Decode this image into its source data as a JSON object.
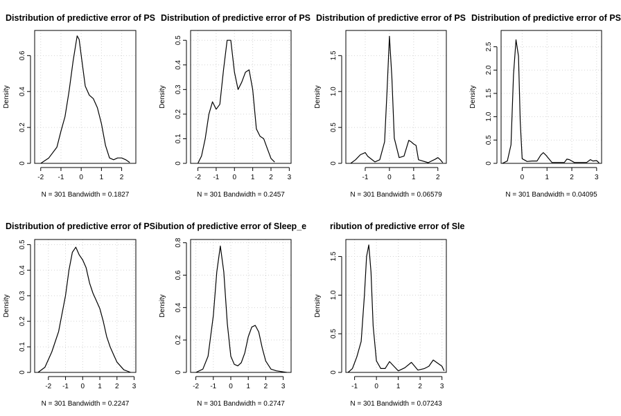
{
  "chart_data": [
    {
      "type": "line",
      "title": "Distribution of predictive error of PS",
      "xlabel": "N = 301   Bandwidth = 0.1827",
      "ylabel": "Density",
      "xlim": [
        -2.3,
        2.7
      ],
      "ylim": [
        0,
        0.74
      ],
      "xticks": [
        -2,
        -1,
        0,
        1,
        2
      ],
      "yticks": [
        0,
        0.2,
        0.4,
        0.6
      ],
      "grid": true,
      "x": [
        -2.0,
        -1.6,
        -1.2,
        -1.0,
        -0.8,
        -0.6,
        -0.4,
        -0.2,
        -0.1,
        0.0,
        0.2,
        0.4,
        0.6,
        0.8,
        1.0,
        1.2,
        1.4,
        1.6,
        1.8,
        2.0,
        2.2,
        2.4
      ],
      "y": [
        0.0,
        0.03,
        0.09,
        0.18,
        0.26,
        0.4,
        0.57,
        0.71,
        0.69,
        0.6,
        0.43,
        0.38,
        0.36,
        0.31,
        0.22,
        0.1,
        0.03,
        0.02,
        0.03,
        0.03,
        0.02,
        0.005
      ]
    },
    {
      "type": "line",
      "title": "Distribution of predictive error of PS",
      "xlabel": "N = 301   Bandwidth = 0.2457",
      "ylabel": "Density",
      "xlim": [
        -2.4,
        3.1
      ],
      "ylim": [
        0,
        0.54
      ],
      "xticks": [
        -2,
        -1,
        0,
        1,
        2,
        3
      ],
      "yticks": [
        0,
        0.1,
        0.2,
        0.3,
        0.4,
        0.5
      ],
      "grid": true,
      "x": [
        -2.0,
        -1.8,
        -1.6,
        -1.4,
        -1.2,
        -1.0,
        -0.8,
        -0.6,
        -0.4,
        -0.2,
        0.0,
        0.2,
        0.4,
        0.6,
        0.8,
        1.0,
        1.2,
        1.4,
        1.6,
        1.8,
        2.0,
        2.2
      ],
      "y": [
        0.0,
        0.03,
        0.1,
        0.2,
        0.25,
        0.22,
        0.24,
        0.38,
        0.5,
        0.5,
        0.37,
        0.3,
        0.33,
        0.37,
        0.38,
        0.3,
        0.14,
        0.11,
        0.1,
        0.06,
        0.02,
        0.005
      ]
    },
    {
      "type": "line",
      "title": "Distribution of predictive error of PS",
      "xlabel": "N = 301   Bandwidth = 0.06579",
      "ylabel": "Density",
      "xlim": [
        -1.8,
        2.35
      ],
      "ylim": [
        0,
        1.85
      ],
      "xticks": [
        -1,
        0,
        1,
        2
      ],
      "yticks": [
        0,
        0.5,
        1.0,
        1.5
      ],
      "grid": true,
      "x": [
        -1.6,
        -1.4,
        -1.2,
        -1.0,
        -0.9,
        -0.6,
        -0.4,
        -0.2,
        -0.1,
        0.0,
        0.1,
        0.2,
        0.4,
        0.6,
        0.8,
        0.9,
        1.0,
        1.1,
        1.2,
        1.6,
        1.9,
        2.0,
        2.1,
        2.2
      ],
      "y": [
        0.0,
        0.05,
        0.12,
        0.15,
        0.1,
        0.02,
        0.05,
        0.3,
        1.0,
        1.77,
        1.2,
        0.35,
        0.08,
        0.1,
        0.32,
        0.3,
        0.27,
        0.25,
        0.05,
        0.01,
        0.06,
        0.08,
        0.05,
        0.01
      ]
    },
    {
      "type": "line",
      "title": "Distribution of predictive error of PS",
      "xlabel": "N = 301   Bandwidth = 0.04095",
      "ylabel": "Density",
      "xlim": [
        -0.85,
        3.2
      ],
      "ylim": [
        0,
        2.85
      ],
      "xticks": [
        0,
        1,
        2,
        3
      ],
      "yticks": [
        0,
        0.5,
        1.0,
        1.5,
        2.0,
        2.5
      ],
      "grid": true,
      "x": [
        -0.8,
        -0.6,
        -0.45,
        -0.35,
        -0.25,
        -0.15,
        -0.08,
        0.0,
        0.2,
        0.4,
        0.6,
        0.75,
        0.85,
        0.95,
        1.2,
        1.7,
        1.8,
        1.9,
        2.1,
        2.6,
        2.75,
        2.85,
        3.0,
        3.1
      ],
      "y": [
        0.0,
        0.05,
        0.4,
        1.9,
        2.65,
        2.3,
        0.9,
        0.1,
        0.04,
        0.05,
        0.05,
        0.18,
        0.23,
        0.18,
        0.02,
        0.02,
        0.09,
        0.08,
        0.02,
        0.02,
        0.08,
        0.05,
        0.06,
        0.01
      ]
    },
    {
      "type": "line",
      "title": "Distribution of predictive error of PS",
      "xlabel": "N = 301   Bandwidth = 0.2247",
      "ylabel": "Density",
      "xlim": [
        -2.8,
        3.1
      ],
      "ylim": [
        0,
        0.52
      ],
      "xticks": [
        -2,
        -1,
        0,
        1,
        2,
        3
      ],
      "yticks": [
        0,
        0.1,
        0.2,
        0.3,
        0.4,
        0.5
      ],
      "grid": true,
      "x": [
        -2.6,
        -2.2,
        -1.8,
        -1.4,
        -1.0,
        -0.8,
        -0.6,
        -0.4,
        -0.2,
        0.0,
        0.2,
        0.4,
        0.6,
        0.8,
        1.0,
        1.2,
        1.4,
        1.6,
        1.8,
        2.0,
        2.4,
        2.8
      ],
      "y": [
        0.0,
        0.02,
        0.08,
        0.16,
        0.3,
        0.4,
        0.47,
        0.49,
        0.46,
        0.44,
        0.41,
        0.35,
        0.31,
        0.28,
        0.25,
        0.2,
        0.14,
        0.1,
        0.07,
        0.04,
        0.01,
        0.0
      ]
    },
    {
      "type": "line",
      "title": "ibution of predictive error of Sleep_e",
      "xlabel": "N = 301   Bandwidth = 0.2747",
      "ylabel": "Density",
      "xlim": [
        -2.3,
        3.45
      ],
      "ylim": [
        0,
        0.82
      ],
      "xticks": [
        -2,
        -1,
        0,
        1,
        2,
        3
      ],
      "yticks": [
        0,
        0.2,
        0.4,
        0.6,
        0.8
      ],
      "grid": true,
      "x": [
        -2.0,
        -1.6,
        -1.3,
        -1.0,
        -0.8,
        -0.6,
        -0.4,
        -0.2,
        0.0,
        0.2,
        0.4,
        0.6,
        0.8,
        1.0,
        1.2,
        1.4,
        1.6,
        1.8,
        2.0,
        2.3,
        2.6,
        3.2
      ],
      "y": [
        0.0,
        0.02,
        0.1,
        0.35,
        0.62,
        0.78,
        0.62,
        0.3,
        0.1,
        0.05,
        0.04,
        0.06,
        0.12,
        0.22,
        0.28,
        0.29,
        0.25,
        0.15,
        0.07,
        0.02,
        0.01,
        0.0
      ]
    },
    {
      "type": "line",
      "title": "ribution of predictive error of Sleep_e",
      "xlabel": "N = 301   Bandwidth = 0.07243",
      "ylabel": "Density",
      "xlim": [
        -1.4,
        3.2
      ],
      "ylim": [
        0,
        1.72
      ],
      "xticks": [
        -1,
        0,
        1,
        2,
        3
      ],
      "yticks": [
        0,
        0.5,
        1.0,
        1.5
      ],
      "grid": true,
      "x": [
        -1.3,
        -1.1,
        -0.9,
        -0.7,
        -0.55,
        -0.45,
        -0.35,
        -0.25,
        -0.15,
        0.0,
        0.2,
        0.4,
        0.6,
        0.8,
        1.0,
        1.3,
        1.6,
        1.9,
        2.2,
        2.4,
        2.6,
        2.8,
        3.0,
        3.1
      ],
      "y": [
        0.0,
        0.05,
        0.2,
        0.4,
        1.0,
        1.5,
        1.65,
        1.3,
        0.6,
        0.15,
        0.05,
        0.05,
        0.14,
        0.08,
        0.02,
        0.06,
        0.13,
        0.03,
        0.05,
        0.08,
        0.16,
        0.12,
        0.08,
        0.02
      ]
    }
  ]
}
